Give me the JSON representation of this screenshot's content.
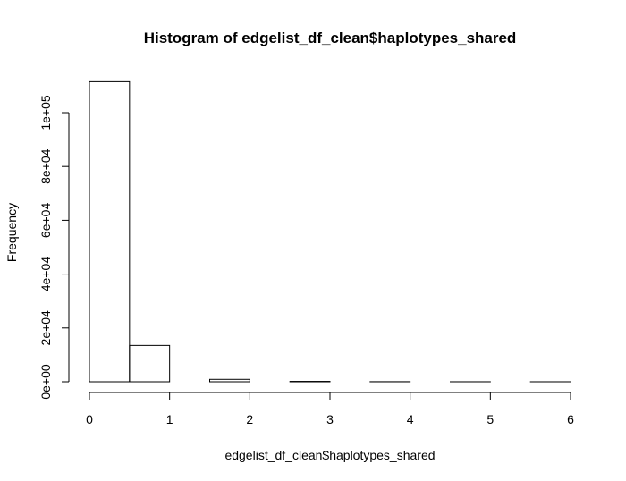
{
  "chart_data": {
    "type": "bar",
    "title": "Histogram of edgelist_df_clean$haplotypes_shared",
    "xlabel": "edgelist_df_clean$haplotypes_shared",
    "ylabel": "Frequency",
    "bin_edges": [
      0,
      0.5,
      1,
      1.5,
      2,
      2.5,
      3,
      3.5,
      4,
      4.5,
      5,
      5.5,
      6
    ],
    "values": [
      111500,
      13500,
      0,
      900,
      0,
      150,
      0,
      30,
      0,
      10,
      0,
      5
    ],
    "xlim": [
      0,
      6
    ],
    "ylim": [
      0,
      100000
    ],
    "x_ticks": [
      0,
      1,
      2,
      3,
      4,
      5,
      6
    ],
    "x_tick_labels": [
      "0",
      "1",
      "2",
      "3",
      "4",
      "5",
      "6"
    ],
    "y_ticks": [
      0,
      20000,
      40000,
      60000,
      80000,
      100000
    ],
    "y_tick_labels": [
      "0e+00",
      "2e+04",
      "4e+04",
      "6e+04",
      "8e+04",
      "1e+05"
    ],
    "grid": false,
    "legend": "none"
  }
}
